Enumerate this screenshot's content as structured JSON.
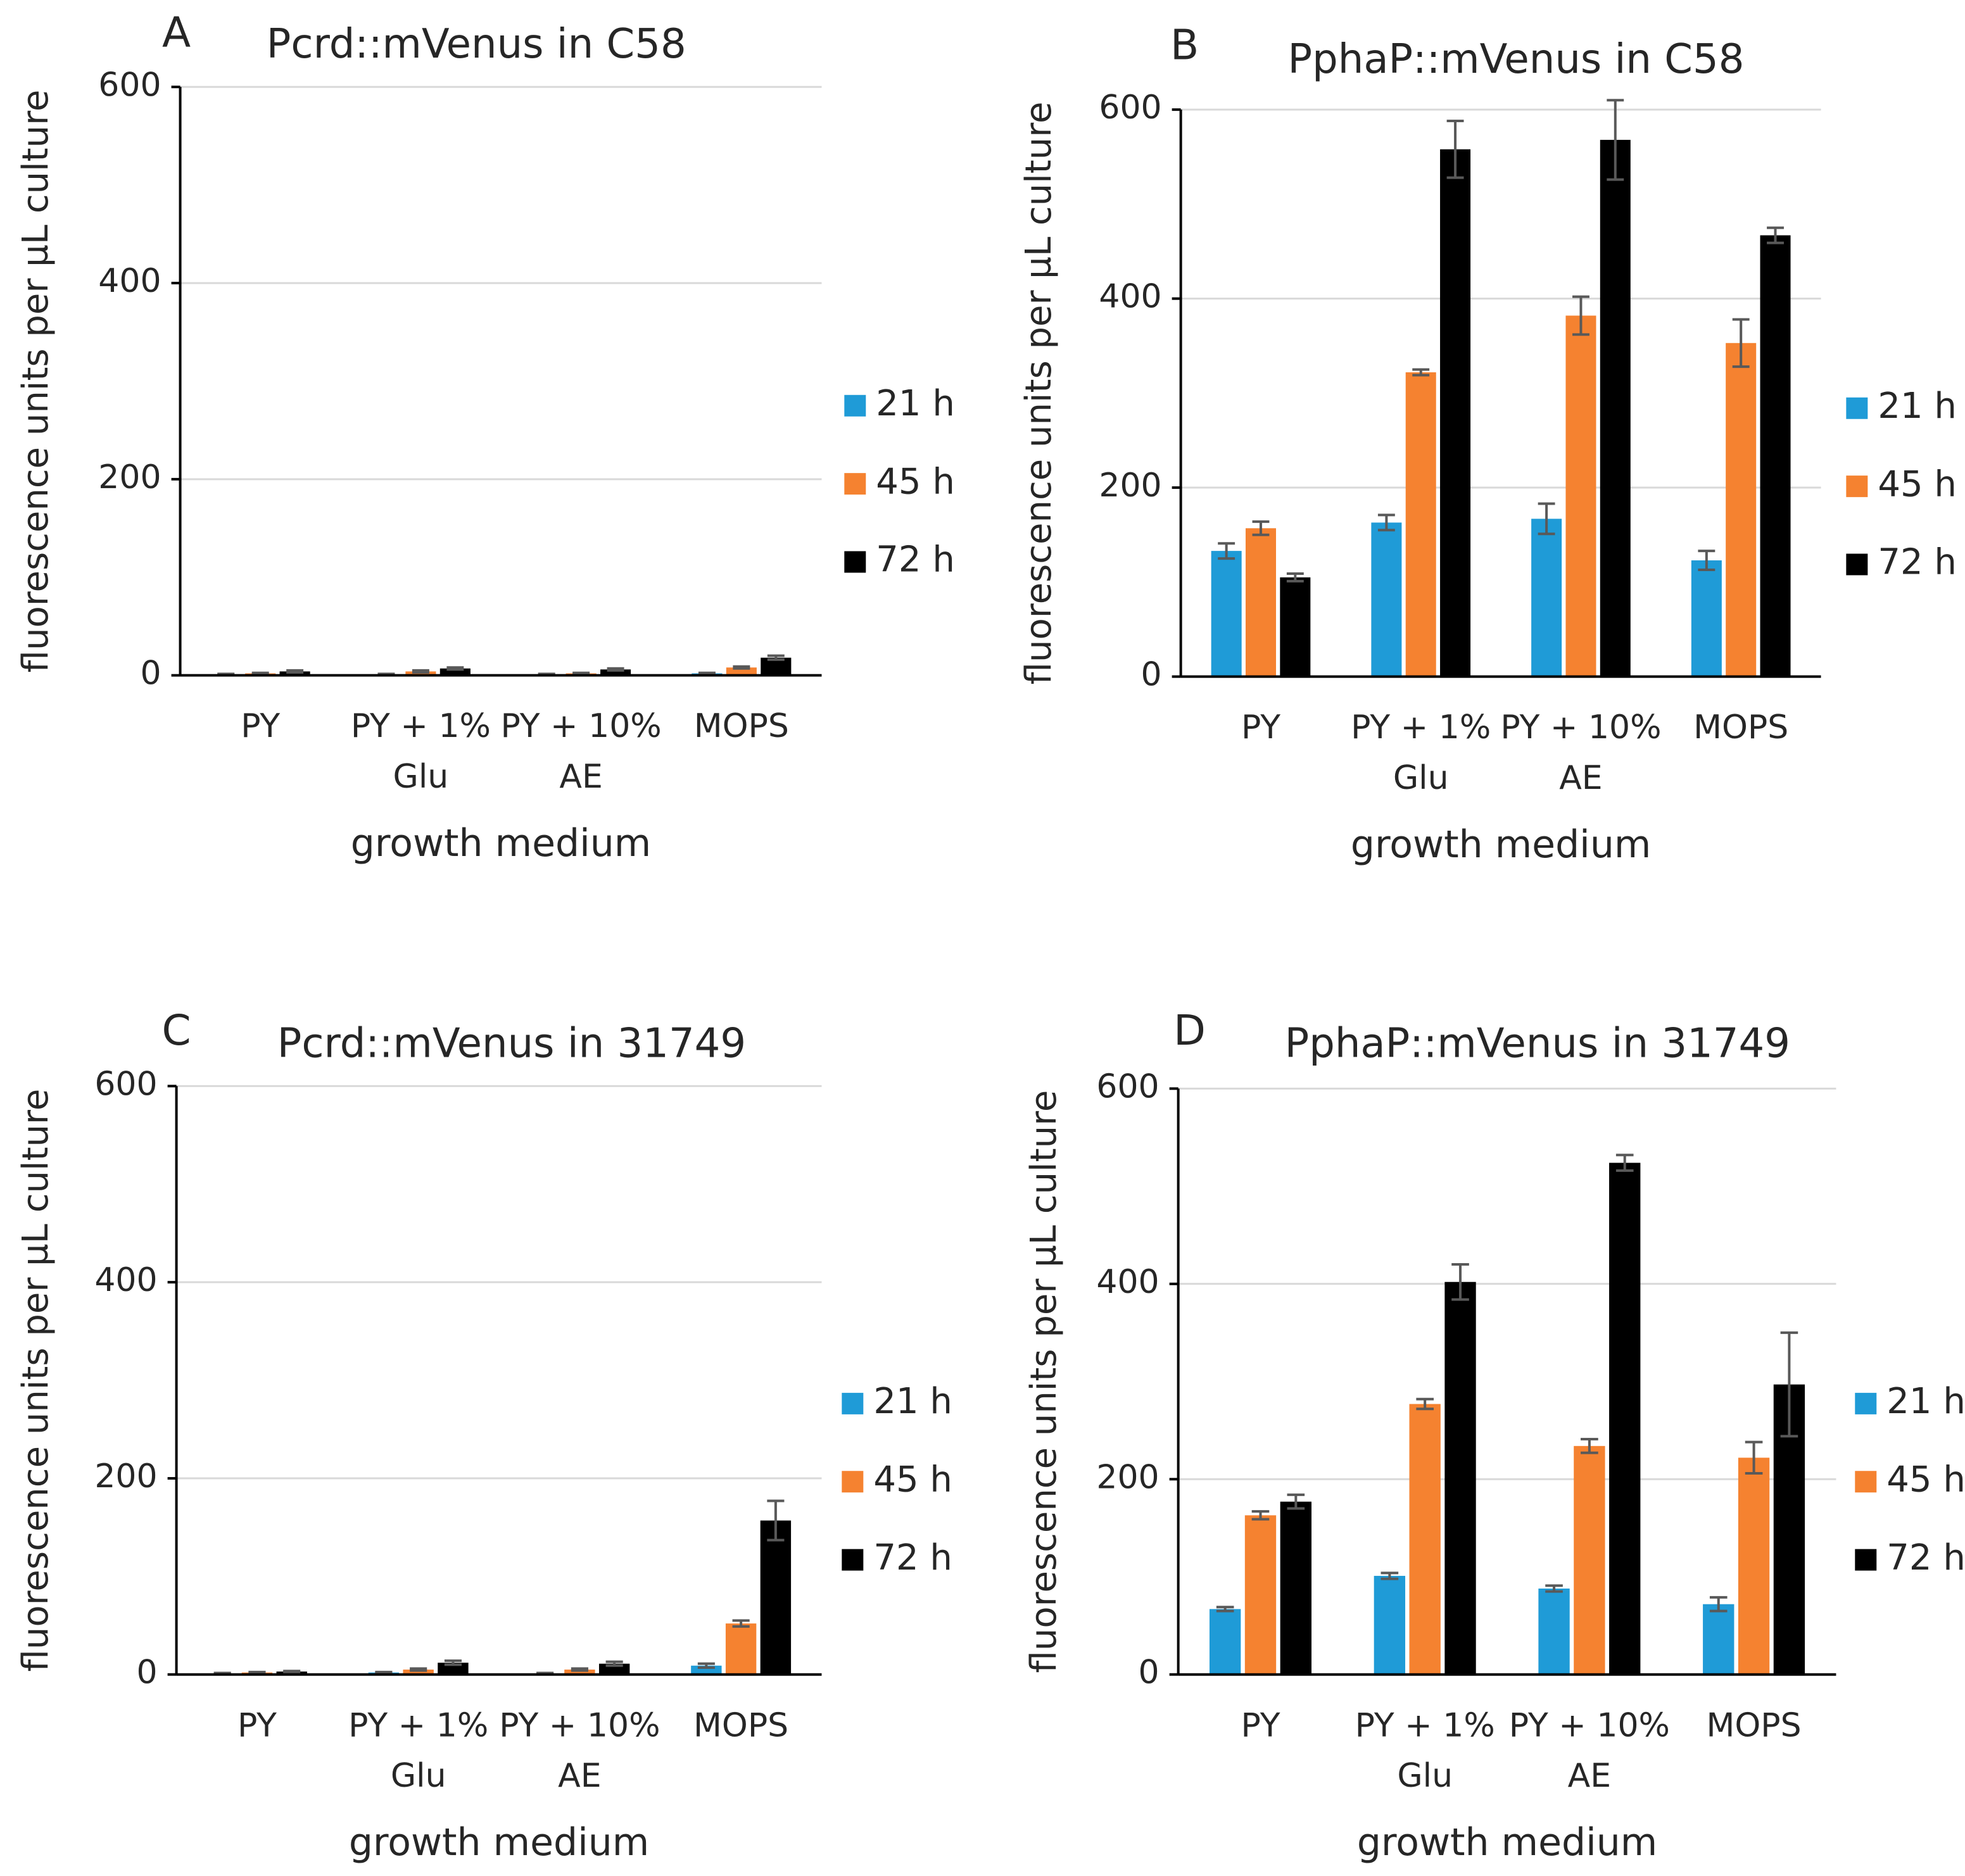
{
  "chart_data": [
    {
      "type": "bar",
      "panel": "A",
      "title": "Pcrd::mVenus in C58",
      "x_label": "growth medium",
      "y_label": "fluorescence units per µL culture",
      "categories": [
        "PY",
        "PY + 1%\nGlu",
        "PY + 10%\nAE",
        "MOPS"
      ],
      "series": [
        {
          "name": "21 h",
          "color": "#1f9bd7",
          "values": [
            1,
            1,
            1,
            2
          ],
          "errors": [
            0.5,
            0.5,
            0.5,
            0.5
          ]
        },
        {
          "name": "45 h",
          "color": "#f58230",
          "values": [
            2,
            4,
            2,
            8
          ],
          "errors": [
            0.5,
            1,
            0.5,
            1
          ]
        },
        {
          "name": "72 h",
          "color": "#000000",
          "values": [
            4,
            7,
            6,
            18
          ],
          "errors": [
            1,
            1,
            1,
            2
          ]
        }
      ],
      "ylim": [
        0,
        600
      ],
      "yticks": [
        0,
        200,
        400,
        600
      ],
      "grid": true,
      "legend": "right"
    },
    {
      "type": "bar",
      "panel": "B",
      "title": "PphaP::mVenus in C58",
      "x_label": "growth medium",
      "y_label": "fluorescence units per µL culture",
      "categories": [
        "PY",
        "PY + 1%\nGlu",
        "PY + 10%\nAE",
        "MOPS"
      ],
      "series": [
        {
          "name": "21 h",
          "color": "#1f9bd7",
          "values": [
            133,
            163,
            167,
            123
          ],
          "errors": [
            8,
            8,
            16,
            10
          ]
        },
        {
          "name": "45 h",
          "color": "#f58230",
          "values": [
            157,
            322,
            382,
            353
          ],
          "errors": [
            7,
            3,
            20,
            25
          ]
        },
        {
          "name": "72 h",
          "color": "#000000",
          "values": [
            105,
            558,
            568,
            467
          ],
          "errors": [
            4,
            30,
            42,
            8
          ]
        }
      ],
      "ylim": [
        0,
        600
      ],
      "yticks": [
        0,
        200,
        400,
        600
      ],
      "grid": true,
      "legend": "right"
    },
    {
      "type": "bar",
      "panel": "C",
      "title": "Pcrd::mVenus in 31749",
      "x_label": "growth medium",
      "y_label": "fluorescence units per µL culture",
      "categories": [
        "PY",
        "PY + 1%\nGlu",
        "PY + 10%\nAE",
        "MOPS"
      ],
      "series": [
        {
          "name": "21 h",
          "color": "#1f9bd7",
          "values": [
            1,
            2,
            1,
            9
          ],
          "errors": [
            0.5,
            0.5,
            0.5,
            2
          ]
        },
        {
          "name": "45 h",
          "color": "#f58230",
          "values": [
            2,
            5,
            5,
            52
          ],
          "errors": [
            0.5,
            1,
            1,
            3
          ]
        },
        {
          "name": "72 h",
          "color": "#000000",
          "values": [
            3,
            12,
            11,
            157
          ],
          "errors": [
            0.5,
            2,
            2,
            20
          ]
        }
      ],
      "ylim": [
        0,
        600
      ],
      "yticks": [
        0,
        200,
        400,
        600
      ],
      "grid": true,
      "legend": "right"
    },
    {
      "type": "bar",
      "panel": "D",
      "title": "PphaP::mVenus in 31749",
      "x_label": "growth medium",
      "y_label": "fluorescence units per µL culture",
      "categories": [
        "PY",
        "PY + 1%\nGlu",
        "PY + 10%\nAE",
        "MOPS"
      ],
      "series": [
        {
          "name": "21 h",
          "color": "#1f9bd7",
          "values": [
            67,
            101,
            88,
            72
          ],
          "errors": [
            2,
            3,
            3,
            7
          ]
        },
        {
          "name": "45 h",
          "color": "#f58230",
          "values": [
            163,
            277,
            234,
            222
          ],
          "errors": [
            4,
            5,
            7,
            16
          ]
        },
        {
          "name": "72 h",
          "color": "#000000",
          "values": [
            177,
            402,
            524,
            297
          ],
          "errors": [
            7,
            18,
            8,
            53
          ]
        }
      ],
      "ylim": [
        0,
        600
      ],
      "yticks": [
        0,
        200,
        400,
        600
      ],
      "grid": true,
      "legend": "right"
    }
  ]
}
